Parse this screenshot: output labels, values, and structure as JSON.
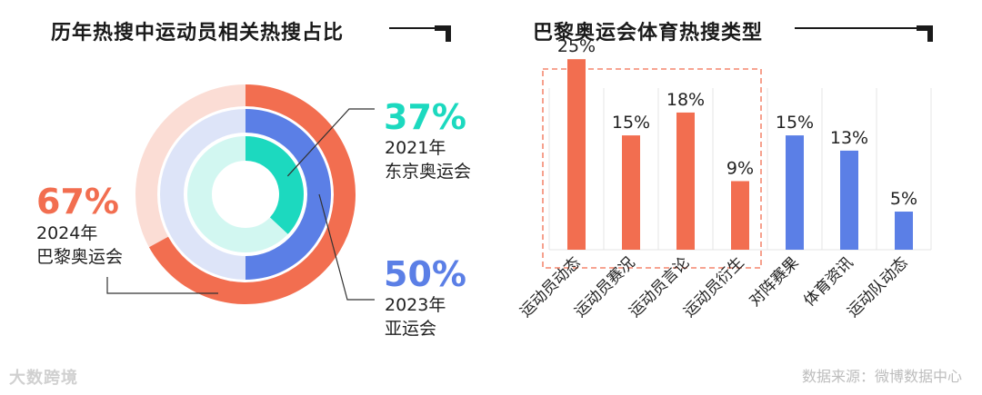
{
  "titles": {
    "left": "历年热搜中运动员相关热搜占比",
    "right": "巴黎奥运会体育热搜类型"
  },
  "chart_data": [
    {
      "type": "pie",
      "variant": "concentric-rings",
      "title": "历年热搜中运动员相关热搜占比",
      "rings": [
        {
          "year": "2024年",
          "event": "巴黎奥运会",
          "value": 67,
          "label": "67%",
          "color": "#F26E50",
          "bg_color": "#FBDDD5",
          "position": "outer"
        },
        {
          "year": "2023年",
          "event": "亚运会",
          "value": 50,
          "label": "50%",
          "color": "#5B7FE6",
          "bg_color": "#DDE4F8",
          "position": "middle"
        },
        {
          "year": "2021年",
          "event": "东京奥运会",
          "value": 37,
          "label": "37%",
          "color": "#1CD9BF",
          "bg_color": "#D2F7F1",
          "position": "inner"
        }
      ]
    },
    {
      "type": "bar",
      "title": "巴黎奥运会体育热搜类型",
      "categories": [
        "运动员动态",
        "运动员赛况",
        "运动员言论",
        "运动员衍生",
        "对阵赛果",
        "体育资讯",
        "运动队动态"
      ],
      "values": [
        25,
        15,
        18,
        9,
        15,
        13,
        5
      ],
      "labels": [
        "25%",
        "15%",
        "18%",
        "9%",
        "15%",
        "13%",
        "5%"
      ],
      "colors": [
        "#F26E50",
        "#F26E50",
        "#F26E50",
        "#F26E50",
        "#5B7FE6",
        "#5B7FE6",
        "#5B7FE6"
      ],
      "highlight_group": "first-4-dashed-box",
      "ylim": [
        0,
        28
      ]
    }
  ],
  "footer": {
    "logo": "大数跨境",
    "source": "数据来源：微博数据中心"
  }
}
